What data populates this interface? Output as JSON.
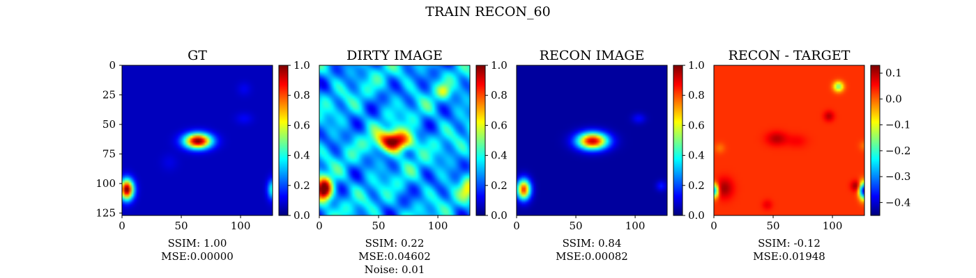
{
  "figure": {
    "title": "TRAIN RECON_60"
  },
  "colors": {
    "jet": [
      "#00007f",
      "#0000ff",
      "#007fff",
      "#00ffff",
      "#7fff7f",
      "#ffff00",
      "#ff7f00",
      "#ff0000",
      "#7f0000"
    ]
  },
  "chart_data": [
    {
      "type": "heatmap",
      "title": "GT",
      "xlim": [
        0,
        127
      ],
      "ylim": [
        0,
        127
      ],
      "xticks": [
        "0",
        "50",
        "100"
      ],
      "yticks": [
        "0",
        "25",
        "50",
        "75",
        "100",
        "125"
      ],
      "colorbar": {
        "range": [
          0.0,
          1.0
        ],
        "ticks": [
          "0.0",
          "0.2",
          "0.4",
          "0.6",
          "0.8",
          "1.0"
        ],
        "tick_values": [
          0,
          0.2,
          0.4,
          0.6,
          0.8,
          1.0
        ]
      },
      "base_value": 0.06,
      "sources": [
        {
          "x": 64,
          "y": 64,
          "sx": 8,
          "sy": 4.5,
          "amp": 0.95
        },
        {
          "x": 4,
          "y": 105,
          "sx": 4,
          "sy": 6,
          "amp": 0.95
        },
        {
          "x": 127,
          "y": 105,
          "sx": 3,
          "sy": 6,
          "amp": 0.35
        },
        {
          "x": 103,
          "y": 45,
          "sx": 5,
          "sy": 3.5,
          "amp": 0.06
        },
        {
          "x": 103,
          "y": 20,
          "sx": 4,
          "sy": 4,
          "amp": 0.05
        },
        {
          "x": 40,
          "y": 82,
          "sx": 5,
          "sy": 5,
          "amp": 0.04
        }
      ],
      "metrics": [
        "SSIM: 1.00",
        "MSE:0.00000"
      ]
    },
    {
      "type": "heatmap",
      "title": "DIRTY IMAGE",
      "xlim": [
        0,
        127
      ],
      "ylim": [
        0,
        127
      ],
      "xticks": [
        "0",
        "50",
        "100"
      ],
      "colorbar": {
        "range": [
          0.0,
          1.0
        ],
        "ticks": [
          "0.0",
          "0.2",
          "0.4",
          "0.6",
          "0.8",
          "1.0"
        ],
        "tick_values": [
          0,
          0.2,
          0.4,
          0.6,
          0.8,
          1.0
        ]
      },
      "base_value": 0.3,
      "noise_amp": 0.1,
      "sources": [
        {
          "x": 64,
          "y": 64,
          "sx": 10,
          "sy": 6,
          "amp": 0.75
        },
        {
          "x": 4,
          "y": 105,
          "sx": 5,
          "sy": 7,
          "amp": 0.78
        },
        {
          "x": 125,
          "y": 105,
          "sx": 4,
          "sy": 7,
          "amp": 0.25
        },
        {
          "x": 105,
          "y": 22,
          "sx": 4,
          "sy": 4,
          "amp": 0.2
        }
      ],
      "metrics": [
        "SSIM: 0.22",
        "MSE:0.04602",
        "Noise: 0.01"
      ]
    },
    {
      "type": "heatmap",
      "title": "RECON IMAGE",
      "xlim": [
        0,
        127
      ],
      "ylim": [
        0,
        127
      ],
      "xticks": [
        "0",
        "50",
        "100"
      ],
      "colorbar": {
        "range": [
          0.0,
          1.0
        ],
        "ticks": [
          "0.0",
          "0.2",
          "0.4",
          "0.6",
          "0.8",
          "1.0"
        ],
        "tick_values": [
          0,
          0.2,
          0.4,
          0.6,
          0.8,
          1.0
        ]
      },
      "base_value": 0.03,
      "sources": [
        {
          "x": 64,
          "y": 64,
          "sx": 9,
          "sy": 5,
          "amp": 0.9
        },
        {
          "x": 6,
          "y": 105,
          "sx": 4,
          "sy": 6,
          "amp": 0.8
        },
        {
          "x": 103,
          "y": 45,
          "sx": 4,
          "sy": 3,
          "amp": 0.1
        },
        {
          "x": 122,
          "y": 102,
          "sx": 3,
          "sy": 3,
          "amp": 0.12
        }
      ],
      "metrics": [
        "SSIM: 0.84",
        "MSE:0.00082"
      ]
    },
    {
      "type": "heatmap",
      "title": "RECON - TARGET",
      "xlim": [
        0,
        127
      ],
      "ylim": [
        0,
        127
      ],
      "xticks": [
        "0",
        "50",
        "100"
      ],
      "colorbar": {
        "range": [
          -0.45,
          0.13
        ],
        "ticks": [
          "0.1",
          "0.0",
          "−0.1",
          "−0.2",
          "−0.3",
          "−0.4"
        ],
        "tick_values": [
          0.1,
          0.0,
          -0.1,
          -0.2,
          -0.3,
          -0.4
        ]
      },
      "base_value": 0.03,
      "sources": [
        {
          "x": 53,
          "y": 62,
          "sx": 6,
          "sy": 4,
          "amp": 0.07
        },
        {
          "x": 70,
          "y": 64,
          "sx": 6,
          "sy": 4,
          "amp": 0.03
        },
        {
          "x": 105,
          "y": 18,
          "sx": 3,
          "sy": 3,
          "amp": -0.2
        },
        {
          "x": 97,
          "y": 43,
          "sx": 3,
          "sy": 3,
          "amp": 0.07
        },
        {
          "x": 126,
          "y": 106,
          "sx": 2.5,
          "sy": 5,
          "amp": -0.42
        },
        {
          "x": 120,
          "y": 102,
          "sx": 3,
          "sy": 3,
          "amp": 0.09
        },
        {
          "x": 9,
          "y": 104,
          "sx": 5,
          "sy": 6,
          "amp": 0.08
        },
        {
          "x": 1,
          "y": 106,
          "sx": 2,
          "sy": 4,
          "amp": -0.3
        },
        {
          "x": 5,
          "y": 70,
          "sx": 3,
          "sy": 3,
          "amp": -0.04
        },
        {
          "x": 127,
          "y": 68,
          "sx": 3,
          "sy": 3,
          "amp": -0.04
        },
        {
          "x": 45,
          "y": 118,
          "sx": 3,
          "sy": 3,
          "amp": 0.04
        }
      ],
      "metrics": [
        "SSIM: -0.12",
        "MSE:0.01948"
      ]
    }
  ]
}
